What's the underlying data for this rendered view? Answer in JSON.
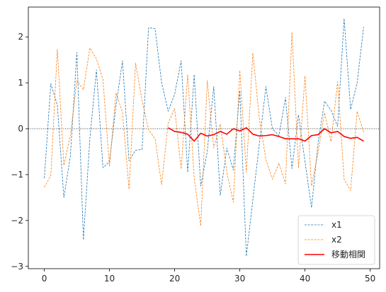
{
  "chart_data": {
    "type": "line",
    "title": "",
    "xlabel": "",
    "ylabel": "",
    "xlim": [
      -2.45,
      51.45
    ],
    "ylim": [
      -3.05,
      2.65
    ],
    "xticks": [
      0,
      10,
      20,
      30,
      40,
      50
    ],
    "yticks": [
      -3,
      -2,
      -1,
      0,
      1,
      2
    ],
    "xtick_labels": [
      "0",
      "10",
      "20",
      "30",
      "40",
      "50"
    ],
    "ytick_labels": [
      "−3",
      "−2",
      "−1",
      "0",
      "1",
      "2"
    ],
    "zero_line": {
      "y": 0,
      "style": "dotted",
      "color": "#000000"
    },
    "grid": false,
    "legend_position": "lower-right",
    "series": [
      {
        "name": "x1",
        "style": "dashed",
        "color": "#1f77b4",
        "x": [
          0,
          1,
          2,
          3,
          4,
          5,
          6,
          7,
          8,
          9,
          10,
          11,
          12,
          13,
          14,
          15,
          16,
          17,
          18,
          19,
          20,
          21,
          22,
          23,
          24,
          25,
          26,
          27,
          28,
          29,
          30,
          31,
          32,
          33,
          34,
          35,
          36,
          37,
          38,
          39,
          40,
          41,
          42,
          43,
          44,
          45,
          46,
          47,
          48,
          49
        ],
        "y": [
          -1.08,
          0.98,
          0.52,
          -1.5,
          -0.6,
          1.66,
          -2.42,
          -0.2,
          1.28,
          -0.85,
          -0.72,
          0.5,
          1.48,
          -0.7,
          -0.47,
          -0.45,
          2.2,
          2.18,
          1.0,
          0.38,
          0.75,
          1.48,
          -0.95,
          1.18,
          -1.25,
          -0.5,
          0.92,
          -1.45,
          -0.42,
          -0.9,
          0.83,
          -2.78,
          -1.55,
          -0.32,
          0.92,
          0.0,
          -0.15,
          0.68,
          -0.87,
          0.3,
          -0.72,
          -1.72,
          -0.32,
          0.6,
          0.4,
          0.05,
          2.4,
          0.42,
          1.0,
          2.22
        ]
      },
      {
        "name": "x2",
        "style": "dashed",
        "color": "#ff7f0e",
        "x": [
          0,
          1,
          2,
          3,
          4,
          5,
          6,
          7,
          8,
          9,
          10,
          11,
          12,
          13,
          14,
          15,
          16,
          17,
          18,
          19,
          20,
          21,
          22,
          23,
          24,
          25,
          26,
          27,
          28,
          29,
          30,
          31,
          32,
          33,
          34,
          35,
          36,
          37,
          38,
          39,
          40,
          41,
          42,
          43,
          44,
          45,
          46,
          47,
          48,
          49
        ],
        "y": [
          -1.28,
          -1.02,
          1.73,
          -0.8,
          -0.15,
          1.05,
          0.85,
          1.76,
          1.52,
          1.07,
          -0.82,
          0.78,
          0.35,
          -1.32,
          1.43,
          0.62,
          -0.02,
          -0.22,
          -1.22,
          0.12,
          0.44,
          -0.88,
          1.18,
          -1.08,
          -2.12,
          1.05,
          -0.42,
          0.1,
          -0.95,
          -1.6,
          1.27,
          -0.95,
          1.65,
          0.22,
          -0.67,
          -1.1,
          -0.75,
          -1.2,
          2.1,
          -0.85,
          1.15,
          -1.25,
          -0.52,
          0.35,
          -0.28,
          1.02,
          -1.1,
          -1.35,
          0.38,
          -0.08
        ]
      },
      {
        "name": "移動相関",
        "style": "solid",
        "color": "#ff0000",
        "x": [
          19,
          20,
          21,
          22,
          23,
          24,
          25,
          26,
          27,
          28,
          29,
          30,
          31,
          32,
          33,
          34,
          35,
          36,
          37,
          38,
          39,
          40,
          41,
          42,
          43,
          44,
          45,
          46,
          47,
          48,
          49
        ],
        "y": [
          0.02,
          -0.06,
          -0.08,
          -0.12,
          -0.27,
          -0.1,
          -0.16,
          -0.13,
          -0.06,
          -0.12,
          0.0,
          -0.05,
          0.02,
          -0.12,
          -0.16,
          -0.15,
          -0.13,
          -0.17,
          -0.22,
          -0.22,
          -0.22,
          -0.27,
          -0.15,
          -0.13,
          0.0,
          -0.09,
          -0.06,
          -0.17,
          -0.21,
          -0.19,
          -0.27
        ]
      }
    ]
  }
}
